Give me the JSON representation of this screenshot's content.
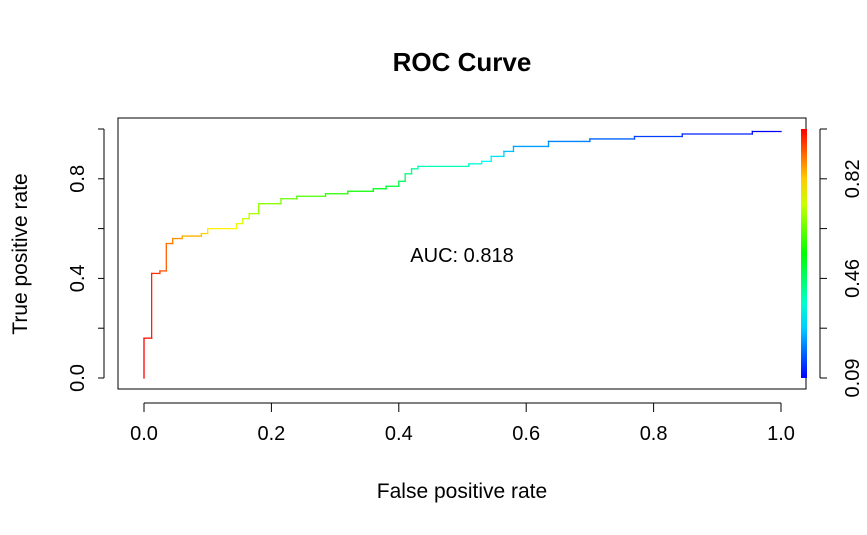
{
  "chart_data": {
    "type": "line",
    "title": "ROC Curve",
    "xlabel": "False positive rate",
    "ylabel": "True positive rate",
    "xlim": [
      0,
      1
    ],
    "ylim": [
      0,
      1
    ],
    "x_ticks": [
      0.0,
      0.2,
      0.4,
      0.6,
      0.8,
      1.0
    ],
    "x_tick_labels": [
      "0.0",
      "0.2",
      "0.4",
      "0.6",
      "0.8",
      "1.0"
    ],
    "y_ticks": [
      0.0,
      0.4,
      0.8
    ],
    "y_tick_labels": [
      "0.0",
      "0.4",
      "0.8"
    ],
    "grid": false,
    "legend": "none",
    "annotation": "AUC: 0.818",
    "colorbar": {
      "position": "right",
      "range": [
        0.09,
        1.0
      ],
      "ticks": [
        0.09,
        0.46,
        0.82
      ],
      "tick_labels": [
        "0.09",
        "0.46",
        "0.82"
      ],
      "colormap": "rainbow (red at top, blue at bottom)"
    },
    "series": [
      {
        "points": [
          [
            0.0,
            0.0
          ],
          [
            0.0,
            0.16
          ],
          [
            0.012,
            0.16
          ],
          [
            0.012,
            0.42
          ],
          [
            0.025,
            0.42
          ],
          [
            0.025,
            0.43
          ],
          [
            0.035,
            0.43
          ],
          [
            0.035,
            0.54
          ],
          [
            0.045,
            0.54
          ],
          [
            0.045,
            0.56
          ],
          [
            0.06,
            0.56
          ],
          [
            0.06,
            0.57
          ],
          [
            0.09,
            0.57
          ],
          [
            0.09,
            0.58
          ],
          [
            0.1,
            0.58
          ],
          [
            0.1,
            0.6
          ],
          [
            0.145,
            0.6
          ],
          [
            0.145,
            0.62
          ],
          [
            0.155,
            0.62
          ],
          [
            0.155,
            0.64
          ],
          [
            0.165,
            0.64
          ],
          [
            0.165,
            0.66
          ],
          [
            0.18,
            0.66
          ],
          [
            0.18,
            0.7
          ],
          [
            0.215,
            0.7
          ],
          [
            0.215,
            0.72
          ],
          [
            0.24,
            0.72
          ],
          [
            0.24,
            0.73
          ],
          [
            0.285,
            0.73
          ],
          [
            0.285,
            0.74
          ],
          [
            0.32,
            0.74
          ],
          [
            0.32,
            0.75
          ],
          [
            0.36,
            0.75
          ],
          [
            0.36,
            0.76
          ],
          [
            0.38,
            0.76
          ],
          [
            0.38,
            0.77
          ],
          [
            0.4,
            0.77
          ],
          [
            0.4,
            0.79
          ],
          [
            0.41,
            0.79
          ],
          [
            0.41,
            0.82
          ],
          [
            0.42,
            0.82
          ],
          [
            0.42,
            0.84
          ],
          [
            0.43,
            0.84
          ],
          [
            0.43,
            0.85
          ],
          [
            0.51,
            0.85
          ],
          [
            0.51,
            0.86
          ],
          [
            0.53,
            0.86
          ],
          [
            0.53,
            0.87
          ],
          [
            0.545,
            0.87
          ],
          [
            0.545,
            0.89
          ],
          [
            0.565,
            0.89
          ],
          [
            0.565,
            0.91
          ],
          [
            0.58,
            0.91
          ],
          [
            0.58,
            0.93
          ],
          [
            0.635,
            0.93
          ],
          [
            0.635,
            0.95
          ],
          [
            0.7,
            0.95
          ],
          [
            0.7,
            0.96
          ],
          [
            0.77,
            0.96
          ],
          [
            0.77,
            0.97
          ],
          [
            0.845,
            0.97
          ],
          [
            0.845,
            0.98
          ],
          [
            0.955,
            0.98
          ],
          [
            0.955,
            0.99
          ],
          [
            1.0,
            0.99
          ]
        ]
      }
    ]
  }
}
